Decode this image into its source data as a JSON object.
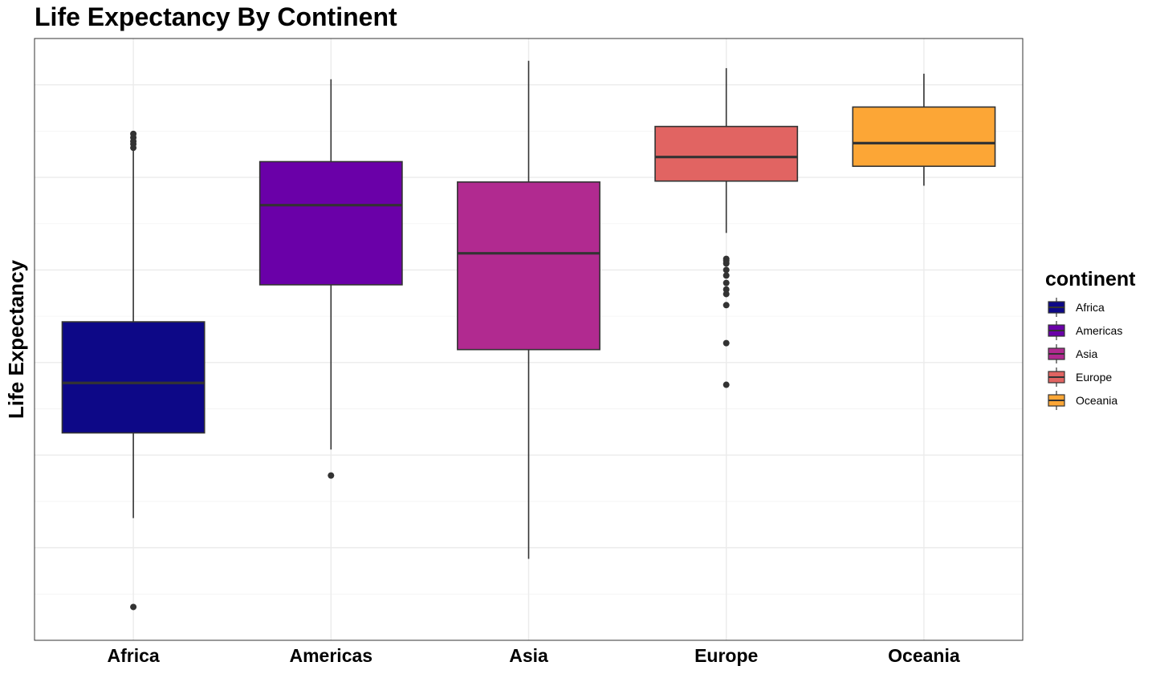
{
  "chart_data": {
    "type": "box",
    "title": "Life Expectancy By Continent",
    "xlabel": "",
    "ylabel": "Life Expectancy",
    "categories": [
      "Africa",
      "Americas",
      "Asia",
      "Europe",
      "Oceania"
    ],
    "ylim": [
      20.0,
      85.0
    ],
    "y_tick_labels_shown": false,
    "grid": true,
    "legend": {
      "title": "continent",
      "position": "right"
    },
    "colors": [
      "#0d0887",
      "#6a00a8",
      "#b12a90",
      "#e16462",
      "#fca636"
    ],
    "boxes": [
      {
        "name": "Africa",
        "min": 33.2,
        "q1": 42.4,
        "median": 47.8,
        "q3": 54.4,
        "max": 73.0,
        "outliers": [
          23.6,
          74.7,
          74.3,
          73.9,
          73.6,
          73.2
        ]
      },
      {
        "name": "Americas",
        "min": 40.6,
        "q1": 58.4,
        "median": 67.0,
        "q3": 71.7,
        "max": 80.6,
        "outliers": [
          37.8
        ]
      },
      {
        "name": "Asia",
        "min": 28.8,
        "q1": 51.4,
        "median": 61.8,
        "q3": 69.5,
        "max": 82.6
      },
      {
        "name": "Europe",
        "min": 64.0,
        "q1": 69.6,
        "median": 72.2,
        "q3": 75.5,
        "max": 81.8,
        "outliers": [
          61.2,
          61.0,
          60.7,
          60.0,
          59.4,
          58.6,
          57.9,
          57.4,
          56.2,
          52.1,
          47.6
        ]
      },
      {
        "name": "Oceania",
        "min": 69.1,
        "q1": 71.2,
        "median": 73.7,
        "q3": 77.6,
        "max": 81.2
      }
    ]
  }
}
